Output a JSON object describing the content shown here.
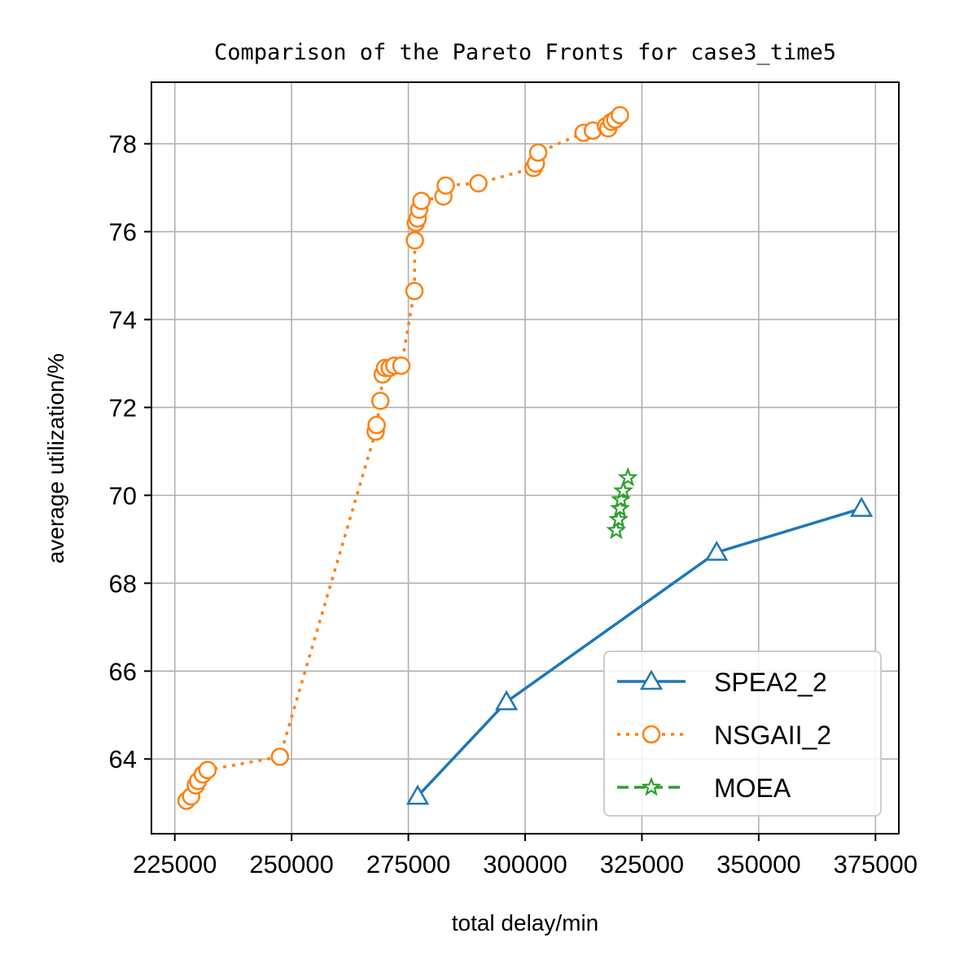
{
  "chart_data": {
    "type": "line",
    "title": "Comparison of the Pareto Fronts for case3_time5",
    "xlabel": "total delay/min",
    "ylabel": "average utilization/%",
    "xlim": [
      220000,
      380000
    ],
    "ylim": [
      62.3,
      79.4
    ],
    "xticks": [
      225000,
      250000,
      275000,
      300000,
      325000,
      350000,
      375000
    ],
    "xtick_labels": [
      "225000",
      "250000",
      "275000",
      "300000",
      "325000",
      "350000",
      "375000"
    ],
    "yticks": [
      64,
      66,
      68,
      70,
      72,
      74,
      76,
      78
    ],
    "ytick_labels": [
      "64",
      "66",
      "68",
      "70",
      "72",
      "74",
      "76",
      "78"
    ],
    "grid": true,
    "legend_position": "lower-right",
    "series": [
      {
        "name": "SPEA2_2",
        "color": "#1f77b4",
        "line_style": "solid",
        "marker": "triangle",
        "x": [
          277000,
          296000,
          341000,
          372000
        ],
        "y": [
          63.15,
          65.3,
          68.7,
          69.7
        ]
      },
      {
        "name": "NSGAII_2",
        "color": "#ff7f0e",
        "line_style": "dotted",
        "marker": "circle",
        "x": [
          227500,
          228500,
          229500,
          230000,
          231000,
          232000,
          247500,
          268000,
          268200,
          269000,
          269500,
          270000,
          271000,
          272000,
          273500,
          276300,
          276400,
          276600,
          277000,
          277300,
          277800,
          282500,
          283000,
          290000,
          301800,
          302300,
          302800,
          312500,
          314500,
          317300,
          317800,
          318500,
          319300,
          320300
        ],
        "y": [
          63.05,
          63.15,
          63.4,
          63.5,
          63.65,
          63.75,
          64.05,
          71.45,
          71.6,
          72.15,
          72.75,
          72.9,
          72.9,
          72.95,
          72.95,
          74.65,
          75.8,
          76.2,
          76.3,
          76.5,
          76.7,
          76.8,
          77.05,
          77.1,
          77.45,
          77.55,
          77.8,
          78.25,
          78.3,
          78.4,
          78.35,
          78.5,
          78.55,
          78.65
        ]
      },
      {
        "name": "MOEA",
        "color": "#2ca02c",
        "line_style": "dashed",
        "marker": "star",
        "x": [
          319500,
          320000,
          320300,
          320500,
          321000,
          322000
        ],
        "y": [
          69.2,
          69.45,
          69.7,
          69.9,
          70.1,
          70.4
        ]
      }
    ]
  }
}
